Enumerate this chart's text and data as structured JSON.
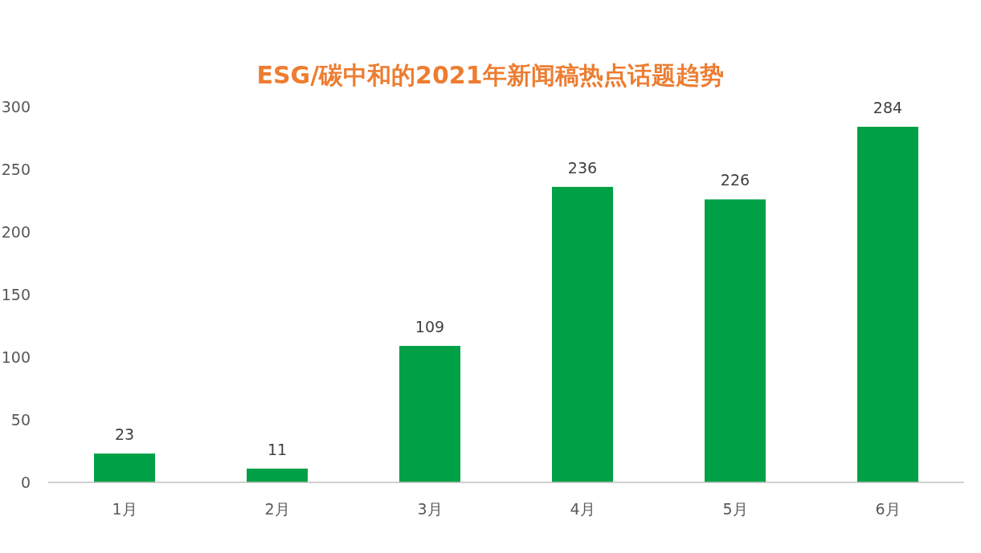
{
  "chart_data": {
    "type": "bar",
    "title": "ESG/碳中和的2021年新闻稿热点话题趋势",
    "categories": [
      "1月",
      "2月",
      "3月",
      "4月",
      "5月",
      "6月"
    ],
    "values": [
      23,
      11,
      109,
      236,
      226,
      284
    ],
    "color": "#00a046",
    "ylim": [
      0,
      300
    ],
    "yticks": [
      0,
      50,
      100,
      150,
      200,
      250,
      300
    ],
    "data_labels": true,
    "grid": false,
    "legend": false
  }
}
